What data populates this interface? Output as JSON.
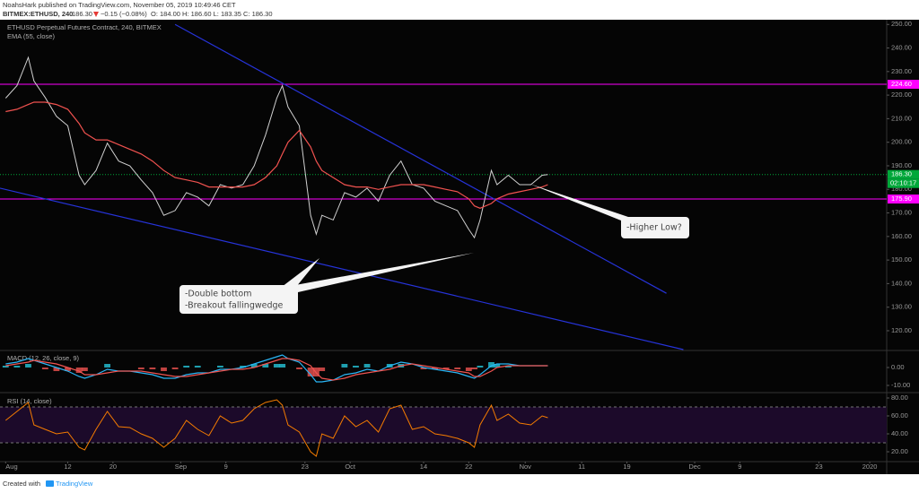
{
  "header": {
    "publisher": "NoahsHark published on TradingView.com, November 05, 2019 10:49:46 CET",
    "symbol": "BITMEX:ETHUSD, 240",
    "last": "186.30",
    "change": "−0.15 (−0.08%)",
    "ohlc": "O: 184.00 H: 186.60 L: 183.35 C: 186.30"
  },
  "footer": {
    "text": "Created with",
    "brand": "TradingView"
  },
  "annotations": [
    {
      "lines": [
        "-Double bottom",
        "-Breakout fallingwedge"
      ]
    },
    {
      "lines": [
        "-Higher Low?"
      ]
    }
  ],
  "chart_data": [
    {
      "type": "line",
      "title": "ETHUSD Perpetual Futures Contract, 240, BITMEX",
      "color": "#d0d0d0",
      "x": [
        "2019-08-01",
        "2019-08-03",
        "2019-08-05",
        "2019-08-06",
        "2019-08-08",
        "2019-08-10",
        "2019-08-12",
        "2019-08-14",
        "2019-08-15",
        "2019-08-17",
        "2019-08-19",
        "2019-08-21",
        "2019-08-23",
        "2019-08-25",
        "2019-08-27",
        "2019-08-29",
        "2019-08-31",
        "2019-09-02",
        "2019-09-04",
        "2019-09-06",
        "2019-09-08",
        "2019-09-10",
        "2019-09-12",
        "2019-09-14",
        "2019-09-16",
        "2019-09-18",
        "2019-09-19",
        "2019-09-20",
        "2019-09-22",
        "2019-09-24",
        "2019-09-25",
        "2019-09-26",
        "2019-09-28",
        "2019-09-30",
        "2019-10-02",
        "2019-10-04",
        "2019-10-06",
        "2019-10-08",
        "2019-10-10",
        "2019-10-12",
        "2019-10-14",
        "2019-10-16",
        "2019-10-18",
        "2019-10-20",
        "2019-10-22",
        "2019-10-23",
        "2019-10-24",
        "2019-10-26",
        "2019-10-27",
        "2019-10-29",
        "2019-10-31",
        "2019-11-02",
        "2019-11-04",
        "2019-11-05"
      ],
      "values": [
        218.7,
        224,
        236,
        226,
        219,
        211,
        207,
        186,
        182,
        188,
        199.6,
        192,
        190,
        184,
        178.6,
        169,
        171,
        178.6,
        176.7,
        173,
        182,
        180.5,
        182,
        190,
        203,
        218.7,
        224,
        215,
        207,
        169,
        161,
        169,
        167,
        178.6,
        176.7,
        180.5,
        175,
        186,
        192,
        182,
        180.5,
        175,
        173,
        171,
        163,
        159.5,
        167,
        188,
        182,
        186,
        182,
        182,
        186,
        186.3
      ],
      "series": [
        {
          "name": "EMA (55, close)",
          "color": "#f0524f",
          "values": [
            213,
            214,
            216,
            217,
            217,
            216,
            214,
            208,
            204,
            201,
            201,
            199,
            197,
            195,
            192,
            188,
            185,
            184,
            183,
            181,
            181,
            181,
            181,
            182,
            185,
            190,
            195,
            200,
            205,
            198,
            192,
            188,
            185,
            182,
            181,
            181,
            180,
            181,
            182,
            182,
            182,
            181,
            180,
            179,
            176,
            173,
            172,
            174,
            176,
            178,
            179,
            180,
            181,
            182
          ]
        }
      ],
      "levels": [
        {
          "value": 224.6,
          "label": "224.60",
          "color": "#ff00ff"
        },
        {
          "value": 175.9,
          "label": "175.90",
          "color": "#ff00ff"
        }
      ],
      "last_price": {
        "value": 186.3,
        "label": "186.30",
        "countdown": "02:10:17",
        "color": "#00a83a"
      },
      "trendlines": [
        {
          "x": [
            "2019-08-31",
            "2019-11-26"
          ],
          "values": [
            250,
            135.9
          ],
          "color": "#2633d9"
        },
        {
          "x": [
            "2019-07-31",
            "2019-11-29"
          ],
          "values": [
            180.5,
            112
          ],
          "color": "#2633d9"
        }
      ],
      "xlim": [
        "2019-07-31",
        "2020-01-04"
      ],
      "xticks": [
        {
          "value": "2019-08-01",
          "label": "Aug"
        },
        {
          "value": "2019-08-12",
          "label": "12"
        },
        {
          "value": "2019-08-20",
          "label": "20"
        },
        {
          "value": "2019-09-01",
          "label": "Sep"
        },
        {
          "value": "2019-09-09",
          "label": "9"
        },
        {
          "value": "2019-09-23",
          "label": "23"
        },
        {
          "value": "2019-10-01",
          "label": "Oct"
        },
        {
          "value": "2019-10-14",
          "label": "14"
        },
        {
          "value": "2019-10-22",
          "label": "22"
        },
        {
          "value": "2019-11-01",
          "label": "Nov"
        },
        {
          "value": "2019-11-11",
          "label": "11"
        },
        {
          "value": "2019-11-19",
          "label": "19"
        },
        {
          "value": "2019-12-01",
          "label": "Dec"
        },
        {
          "value": "2019-12-09",
          "label": "9"
        },
        {
          "value": "2019-12-23",
          "label": "23"
        },
        {
          "value": "2020-01-01",
          "label": "2020"
        }
      ],
      "ylim": [
        112,
        252
      ],
      "yticks": [
        {
          "value": 120,
          "label": "120.00"
        },
        {
          "value": 130,
          "label": "130.00"
        },
        {
          "value": 140,
          "label": "140.00"
        },
        {
          "value": 150,
          "label": "150.00"
        },
        {
          "value": 160,
          "label": "160.00"
        },
        {
          "value": 170,
          "label": "170.00"
        },
        {
          "value": 180,
          "label": "180.00"
        },
        {
          "value": 190,
          "label": "190.00"
        },
        {
          "value": 200,
          "label": "200.00"
        },
        {
          "value": 210,
          "label": "210.00"
        },
        {
          "value": 220,
          "label": "220.00"
        },
        {
          "value": 230,
          "label": "230.00"
        },
        {
          "value": 240,
          "label": "240.00"
        },
        {
          "value": 250,
          "label": "250.00"
        }
      ],
      "grid": false
    },
    {
      "type": "macd",
      "title": "MACD (12, 26, close, 9)",
      "x": [
        "2019-08-01",
        "2019-08-03",
        "2019-08-05",
        "2019-08-06",
        "2019-08-08",
        "2019-08-10",
        "2019-08-12",
        "2019-08-14",
        "2019-08-15",
        "2019-08-17",
        "2019-08-19",
        "2019-08-21",
        "2019-08-23",
        "2019-08-25",
        "2019-08-27",
        "2019-08-29",
        "2019-08-31",
        "2019-09-02",
        "2019-09-04",
        "2019-09-06",
        "2019-09-08",
        "2019-09-10",
        "2019-09-12",
        "2019-09-14",
        "2019-09-16",
        "2019-09-18",
        "2019-09-19",
        "2019-09-20",
        "2019-09-22",
        "2019-09-24",
        "2019-09-25",
        "2019-09-26",
        "2019-09-28",
        "2019-09-30",
        "2019-10-02",
        "2019-10-04",
        "2019-10-06",
        "2019-10-08",
        "2019-10-10",
        "2019-10-12",
        "2019-10-14",
        "2019-10-16",
        "2019-10-18",
        "2019-10-20",
        "2019-10-22",
        "2019-10-23",
        "2019-10-24",
        "2019-10-26",
        "2019-10-27",
        "2019-10-29",
        "2019-10-31",
        "2019-11-02",
        "2019-11-04",
        "2019-11-05"
      ],
      "macd": {
        "color": "#29b6f6",
        "values": [
          2,
          3,
          5,
          4,
          2,
          0,
          -2,
          -5,
          -6,
          -4,
          -1,
          -2,
          -2,
          -3,
          -4,
          -6,
          -6,
          -4,
          -3,
          -3,
          -1,
          -1,
          0,
          2,
          4,
          6,
          7,
          5,
          3,
          -4,
          -8,
          -8,
          -7,
          -4,
          -3,
          -1,
          -2,
          1,
          3,
          2,
          0,
          -1,
          -2,
          -3,
          -5,
          -6,
          -4,
          1,
          2,
          2,
          1,
          1,
          1,
          1
        ]
      },
      "signal": {
        "color": "#ef5350",
        "values": [
          1,
          2,
          3,
          4,
          3,
          2,
          0,
          -2,
          -4,
          -4,
          -3,
          -2,
          -2,
          -2,
          -3,
          -4,
          -5,
          -5,
          -4,
          -3,
          -2,
          -1,
          -1,
          0,
          2,
          4,
          5,
          5,
          4,
          1,
          -3,
          -6,
          -7,
          -6,
          -4,
          -3,
          -2,
          -1,
          1,
          2,
          1,
          0,
          -1,
          -2,
          -3,
          -5,
          -5,
          -2,
          0,
          1,
          1,
          1,
          1,
          1
        ]
      },
      "histogram": {
        "colors": [
          "#26c6da",
          "#ef5350"
        ],
        "values": [
          1,
          1,
          2,
          0,
          -1,
          -2,
          -2,
          -3,
          -2,
          0,
          2,
          0,
          0,
          -1,
          -1,
          -2,
          -1,
          1,
          1,
          0,
          1,
          0,
          1,
          2,
          2,
          2,
          2,
          0,
          -1,
          -5,
          -5,
          -2,
          0,
          2,
          1,
          2,
          0,
          2,
          2,
          0,
          -1,
          -1,
          -1,
          -1,
          -2,
          -1,
          1,
          3,
          2,
          1,
          0,
          0,
          0,
          0
        ]
      },
      "xlim": [
        "2019-07-31",
        "2020-01-04"
      ],
      "ylim": [
        -13.5,
        9
      ],
      "yticks": [
        {
          "value": 0,
          "label": "0.00"
        },
        {
          "value": -10,
          "label": "-10.00"
        }
      ]
    },
    {
      "type": "rsi",
      "title": "RSI (14, close)",
      "color": "#f57c00",
      "band": [
        30,
        70
      ],
      "x": [
        "2019-08-01",
        "2019-08-03",
        "2019-08-05",
        "2019-08-06",
        "2019-08-08",
        "2019-08-10",
        "2019-08-12",
        "2019-08-14",
        "2019-08-15",
        "2019-08-17",
        "2019-08-19",
        "2019-08-21",
        "2019-08-23",
        "2019-08-25",
        "2019-08-27",
        "2019-08-29",
        "2019-08-31",
        "2019-09-02",
        "2019-09-04",
        "2019-09-06",
        "2019-09-08",
        "2019-09-10",
        "2019-09-12",
        "2019-09-14",
        "2019-09-16",
        "2019-09-18",
        "2019-09-19",
        "2019-09-20",
        "2019-09-22",
        "2019-09-24",
        "2019-09-25",
        "2019-09-26",
        "2019-09-28",
        "2019-09-30",
        "2019-10-02",
        "2019-10-04",
        "2019-10-06",
        "2019-10-08",
        "2019-10-10",
        "2019-10-12",
        "2019-10-14",
        "2019-10-16",
        "2019-10-18",
        "2019-10-20",
        "2019-10-22",
        "2019-10-23",
        "2019-10-24",
        "2019-10-26",
        "2019-10-27",
        "2019-10-29",
        "2019-10-31",
        "2019-11-02",
        "2019-11-04",
        "2019-11-05"
      ],
      "values": [
        55,
        65,
        75,
        50,
        45,
        40,
        42,
        25,
        22,
        45,
        65,
        48,
        47,
        40,
        35,
        25,
        35,
        55,
        45,
        38,
        60,
        52,
        55,
        68,
        75,
        78,
        72,
        50,
        42,
        20,
        15,
        40,
        35,
        60,
        48,
        55,
        42,
        68,
        72,
        45,
        48,
        40,
        38,
        35,
        30,
        25,
        50,
        72,
        55,
        62,
        52,
        50,
        60,
        58
      ],
      "xlim": [
        "2019-07-31",
        "2020-01-04"
      ],
      "ylim": [
        9,
        85
      ],
      "yticks": [
        {
          "value": 20,
          "label": "20.00"
        },
        {
          "value": 40,
          "label": "40.00"
        },
        {
          "value": 60,
          "label": "60.00"
        },
        {
          "value": 80,
          "label": "80.00"
        }
      ]
    }
  ]
}
